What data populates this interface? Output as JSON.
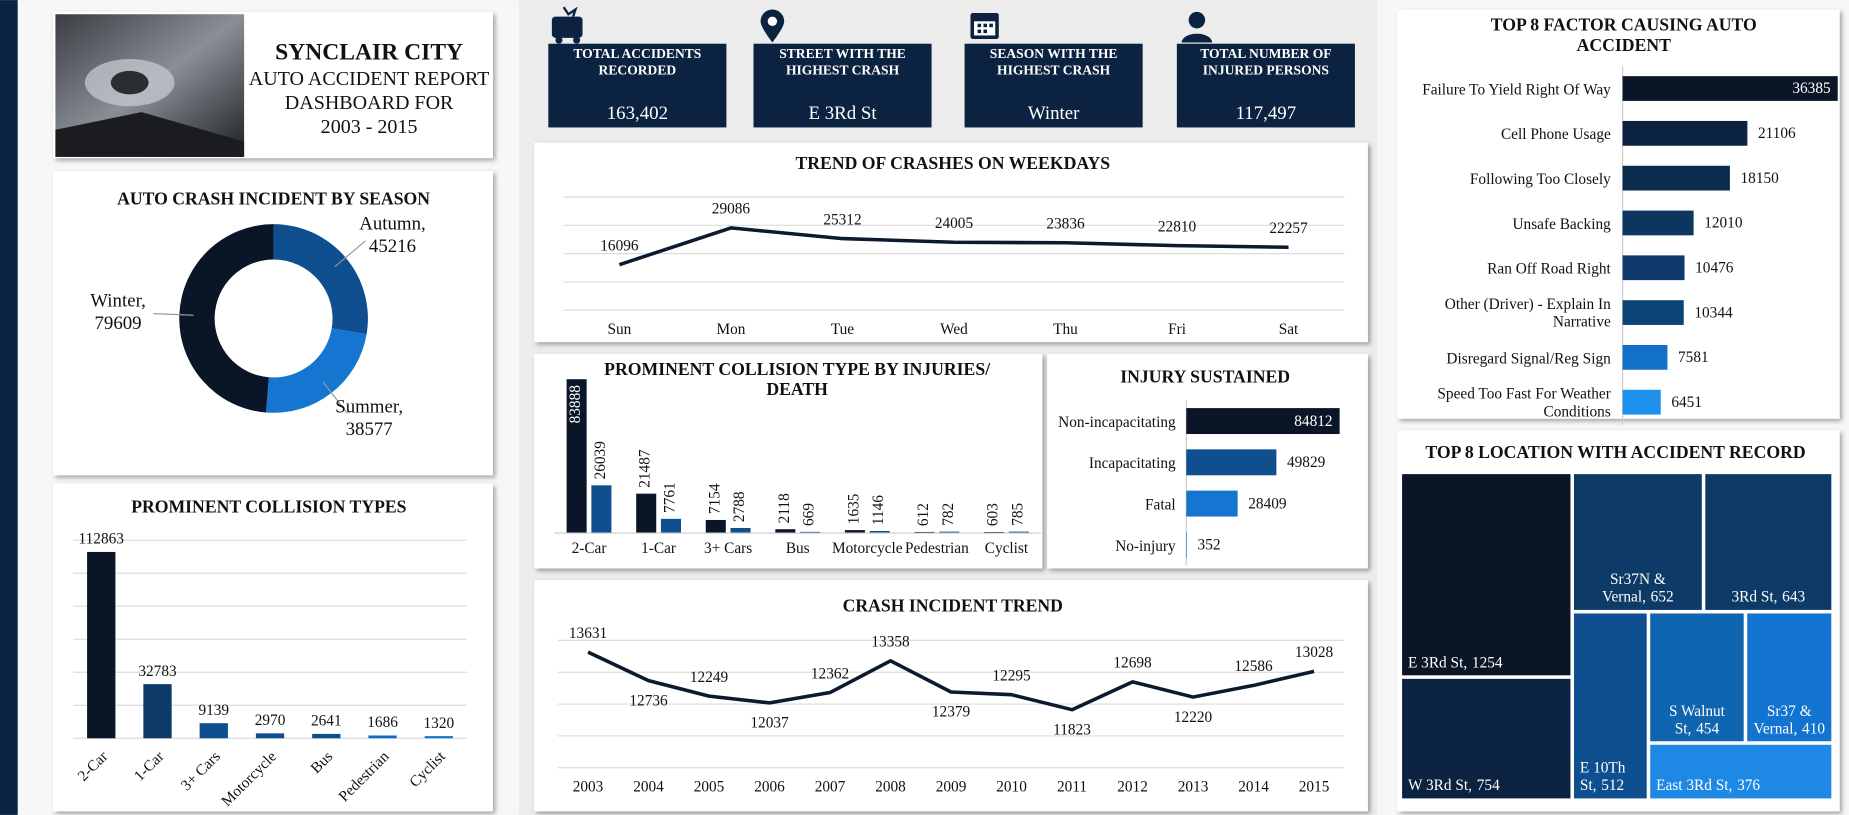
{
  "header": {
    "title": "SYNCLAIR CITY",
    "subtitle": [
      "AUTO ACCIDENT REPORT",
      "DASHBOARD FOR",
      "2003 - 2015"
    ]
  },
  "kpis": [
    {
      "label": "TOTAL ACCIDENTS RECORDED",
      "value": "163,402"
    },
    {
      "label": "STREET WITH THE HIGHEST CRASH",
      "value": "E 3Rd St"
    },
    {
      "label": "SEASON WITH THE HIGHEST CRASH",
      "value": "Winter"
    },
    {
      "label": "TOTAL NUMBER OF INJURED PERSONS",
      "value": "117,497"
    }
  ],
  "chart_data": [
    {
      "type": "donut",
      "title": "AUTO CRASH INCIDENT BY SEASON",
      "categories": [
        "Autumn,",
        "Summer,",
        "Winter,"
      ],
      "values": [
        45216,
        38577,
        79609
      ],
      "colors": [
        "#0f4f8f",
        "#1576d1",
        "#0a1628"
      ]
    },
    {
      "type": "bar",
      "title": "PROMINENT COLLISION TYPES",
      "categories": [
        "2-Car",
        "1-Car",
        "3+ Cars",
        "Motorcycle",
        "Bus",
        "Pedestrian",
        "Cyclist"
      ],
      "values": [
        112863,
        32783,
        9139,
        2970,
        2641,
        1686,
        1320
      ],
      "colors": [
        "#0a1628",
        "#0d3a66",
        "#0f4f8f",
        "#0f4f8f",
        "#0f4f8f",
        "#1369c4",
        "#1576d1"
      ],
      "ylim": [
        0,
        120000
      ],
      "yticks": [
        0,
        20000,
        40000,
        60000,
        80000,
        100000,
        120000
      ],
      "grid": true
    },
    {
      "type": "line",
      "title": "TREND OF CRASHES ON WEEKDAYS",
      "categories": [
        "Sun",
        "Mon",
        "Tue",
        "Wed",
        "Thu",
        "Fri",
        "Sat"
      ],
      "values": [
        16096,
        29086,
        25312,
        24005,
        23836,
        22810,
        22257
      ],
      "color": "#0b1a2e",
      "ylim": [
        0,
        40000
      ],
      "yticks": [
        0,
        10000,
        20000,
        30000,
        40000
      ],
      "grid": true
    },
    {
      "type": "grouped_bar",
      "title": "PROMINENT COLLISION TYPE BY INJURIES/ DEATH",
      "categories": [
        "2-Car",
        "1-Car",
        "3+ Cars",
        "Bus",
        "Motorcycle",
        "Pedestrian",
        "Cyclist"
      ],
      "series": [
        {
          "color": "#0a1628",
          "values": [
            83888,
            21487,
            7154,
            2118,
            1635,
            612,
            603
          ]
        },
        {
          "color": "#0f4f8f",
          "values": [
            26039,
            7761,
            2788,
            669,
            1146,
            782,
            785
          ]
        }
      ],
      "ylim": [
        0,
        90000
      ]
    },
    {
      "type": "barh",
      "title": "INJURY SUSTAINED",
      "categories": [
        "Non-incapacitating",
        "Incapacitating",
        "Fatal",
        "No-injury"
      ],
      "values": [
        84812,
        49829,
        28409,
        352
      ],
      "colors": [
        "#0a1628",
        "#0f4f8f",
        "#1576d1",
        "#1e88e5"
      ],
      "xlim": [
        0,
        90000
      ]
    },
    {
      "type": "line",
      "title": "CRASH INCIDENT TREND",
      "categories": [
        "2003",
        "2004",
        "2005",
        "2006",
        "2007",
        "2008",
        "2009",
        "2010",
        "2011",
        "2012",
        "2013",
        "2014",
        "2015"
      ],
      "values": [
        13631,
        12736,
        12249,
        12037,
        12362,
        13358,
        12379,
        12295,
        11823,
        12698,
        12220,
        12586,
        13028
      ],
      "color": "#0b1a2e",
      "ylim": [
        10000,
        14000
      ],
      "yticks": [
        10000,
        11000,
        12000,
        13000,
        14000
      ],
      "grid": true
    },
    {
      "type": "barh",
      "title": "TOP 8 FACTOR CAUSING AUTO ACCIDENT",
      "categories": [
        "Failure To Yield Right Of Way",
        "Cell Phone Usage",
        "Following Too Closely",
        "Unsafe Backing",
        "Ran Off Road Right",
        "Other (Driver) - Explain In Narrative",
        "Disregard Signal/Reg Sign",
        "Speed Too Fast For Weather Conditions"
      ],
      "values": [
        36385,
        21106,
        18150,
        12010,
        10476,
        10344,
        7581,
        6451
      ],
      "colors": [
        "#0a1628",
        "#0b2340",
        "#0b2a4d",
        "#0d3560",
        "#0d3a6b",
        "#0d4478",
        "#1370c9",
        "#1e90ee"
      ],
      "xlim": [
        0,
        36500
      ]
    },
    {
      "type": "treemap",
      "title": "TOP 8 LOCATION WITH ACCIDENT RECORD",
      "categories": [
        "E 3Rd St,",
        "W 3Rd St,",
        "Sr37N & Vernal,",
        "3Rd St,",
        "E 10Th St,",
        "S Walnut St,",
        "Sr37 & Vernal,",
        "East 3Rd St,"
      ],
      "values": [
        1254,
        754,
        652,
        643,
        512,
        454,
        410,
        376
      ],
      "colors": [
        "#0a1626",
        "#0b2340",
        "#0d3a66",
        "#0d3a66",
        "#0f4f8f",
        "#1065b0",
        "#1273d0",
        "#1e88e5"
      ]
    }
  ]
}
